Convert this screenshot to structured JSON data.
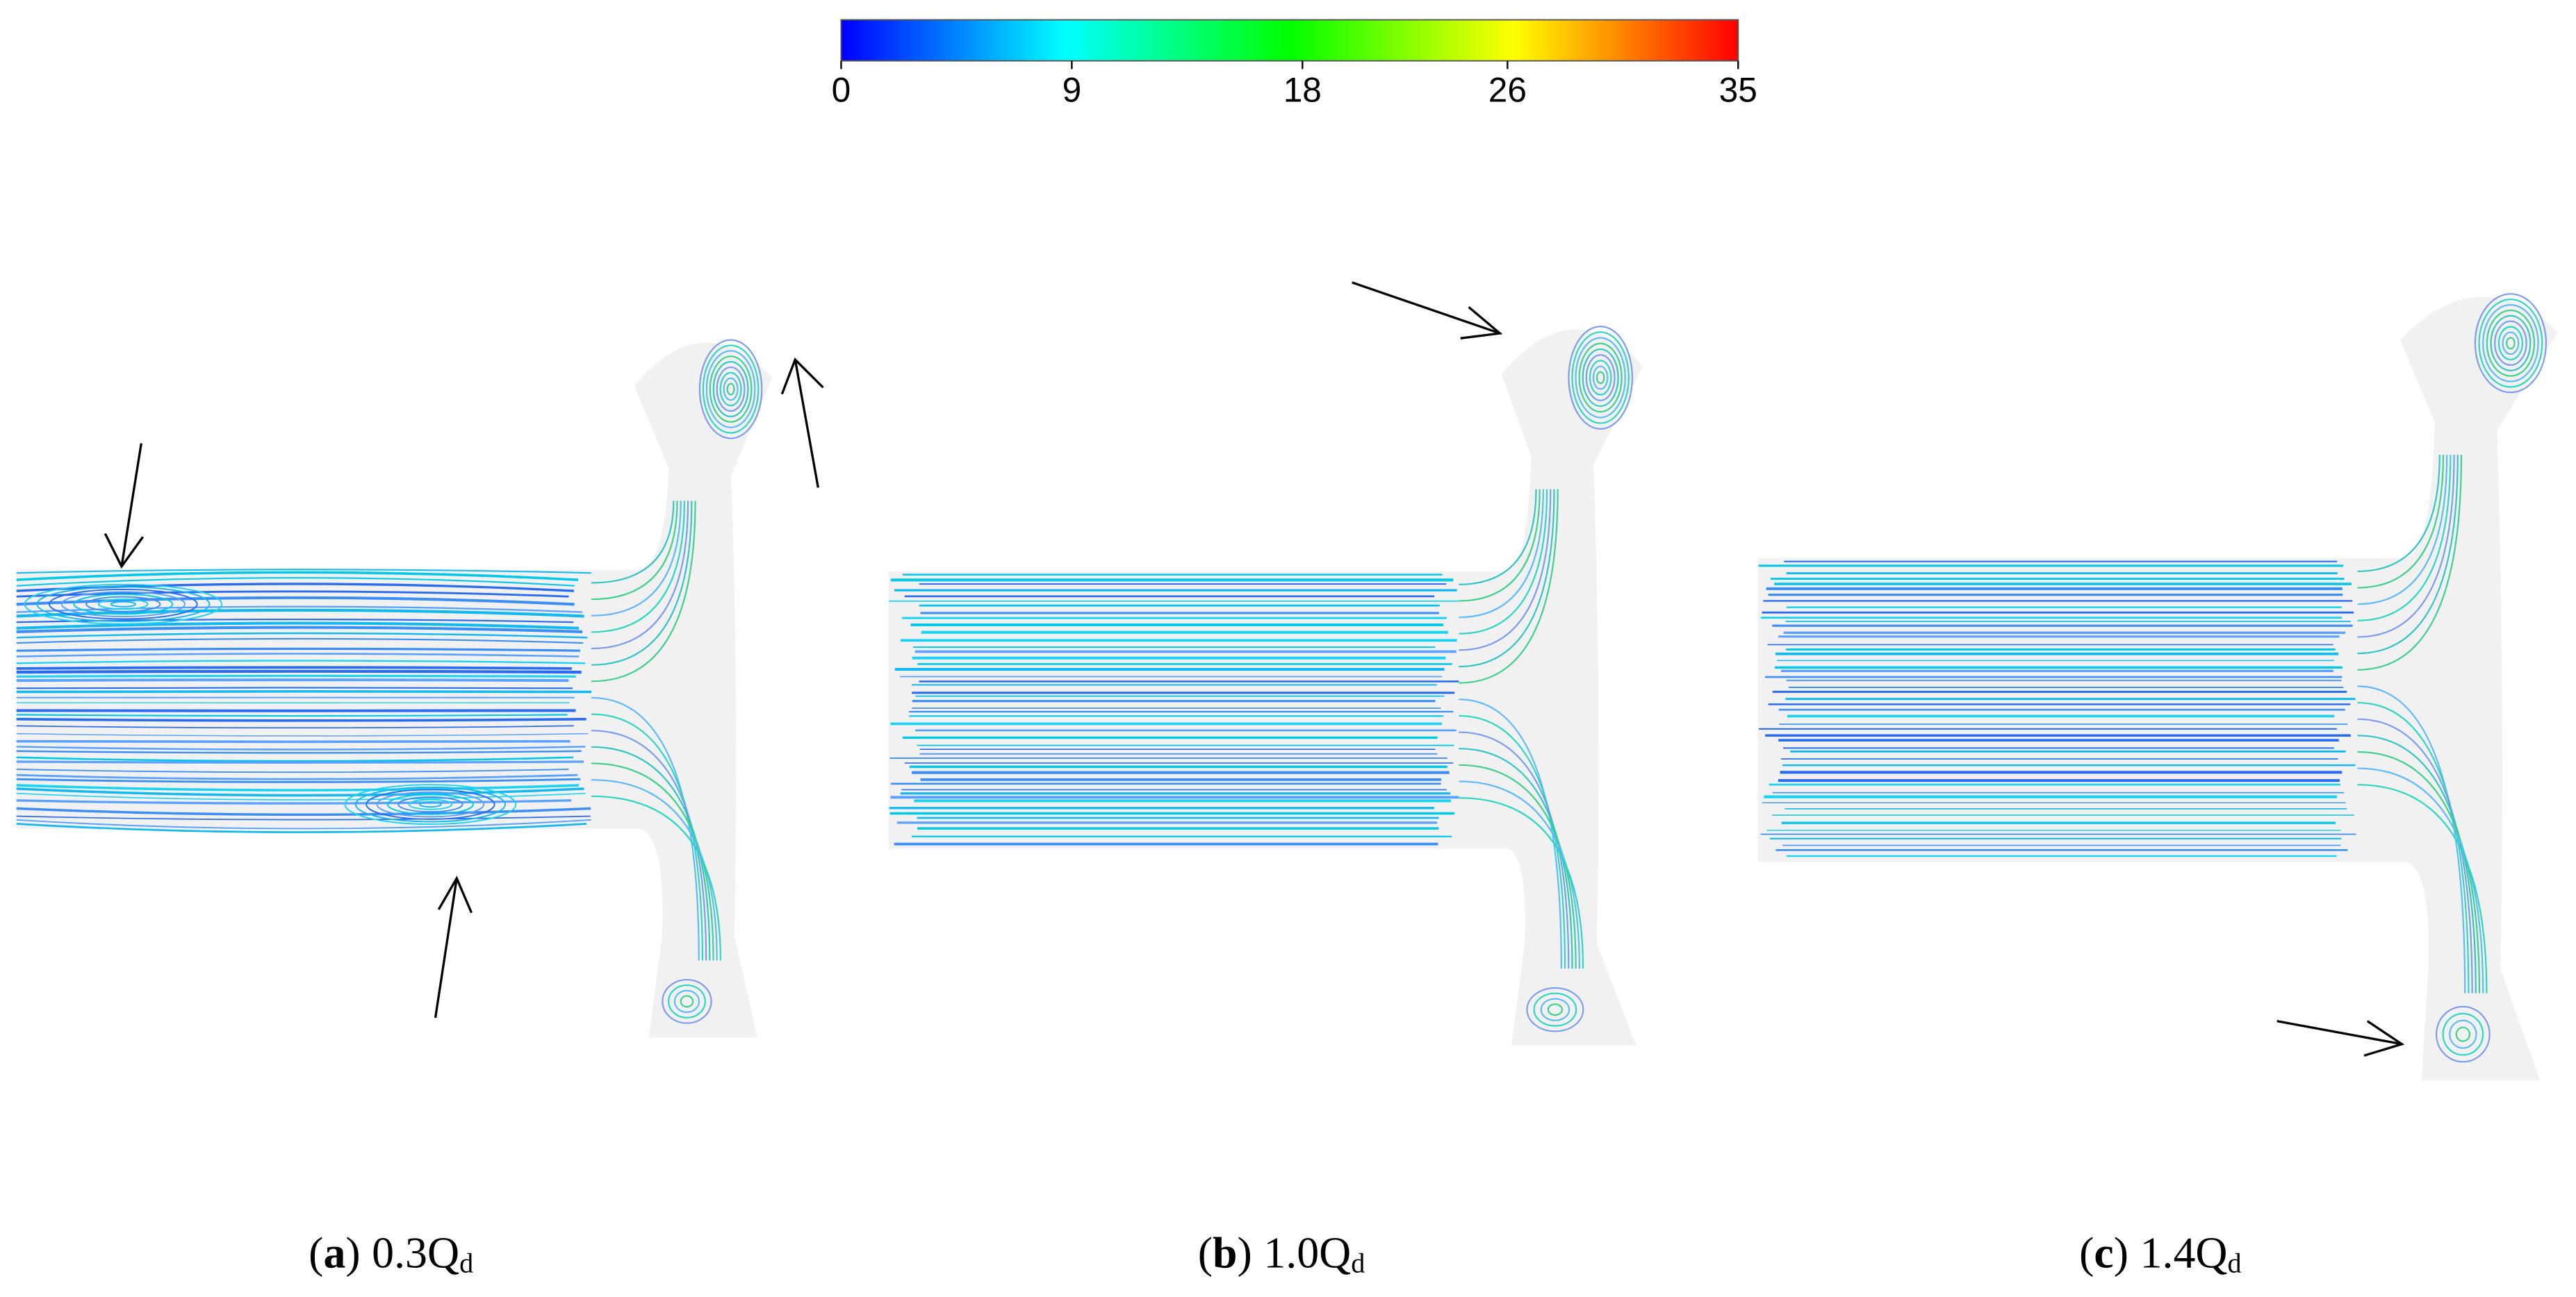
{
  "colorbar": {
    "range": [
      0,
      35
    ],
    "ticks": [
      0,
      9,
      18,
      26,
      35
    ]
  },
  "panels": [
    {
      "caption": {
        "open": "(",
        "label": "a",
        "close": ")",
        "flow": "0.3Q",
        "sub": "d"
      }
    },
    {
      "caption": {
        "open": "(",
        "label": "b",
        "close": ")",
        "flow": "1.0Q",
        "sub": "d"
      }
    },
    {
      "caption": {
        "open": "(",
        "label": "c",
        "close": ")",
        "flow": "1.4Q",
        "sub": "d"
      }
    }
  ]
}
